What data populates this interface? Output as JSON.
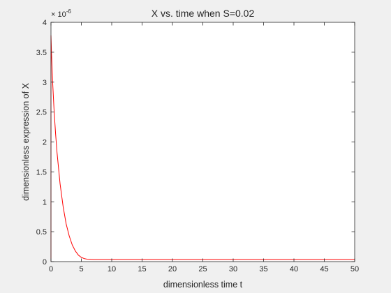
{
  "chart_data": {
    "type": "line",
    "title": "X vs. time when S=0.02",
    "xlabel": "dimensionless time t",
    "ylabel": "dimensionless expression of X",
    "xlim": [
      0,
      50
    ],
    "ylim": [
      0,
      4
    ],
    "y_exponent_base": "× 10",
    "y_exponent_power": "-6",
    "x_ticks": [
      "0",
      "5",
      "10",
      "15",
      "20",
      "25",
      "30",
      "35",
      "40",
      "45",
      "50"
    ],
    "y_ticks": [
      "0",
      "0.5",
      "1",
      "1.5",
      "2",
      "2.5",
      "3",
      "3.5",
      "4"
    ],
    "grid": false,
    "legend": "none",
    "series": [
      {
        "color": "#ff0000",
        "x": [
          0,
          0,
          0.1,
          0.25,
          0.5,
          0.75,
          1.0,
          1.5,
          2.0,
          2.5,
          3.0,
          3.5,
          4.0,
          4.5,
          5.0,
          5.5,
          6.0,
          7.0,
          8.0,
          10.0,
          15.0,
          20.0,
          25.0,
          30.0,
          35.0,
          40.0,
          45.0,
          50.0
        ],
        "y": [
          0,
          3.78,
          3.45,
          3.05,
          2.55,
          2.15,
          1.82,
          1.3,
          0.92,
          0.63,
          0.43,
          0.28,
          0.18,
          0.11,
          0.07,
          0.05,
          0.04,
          0.035,
          0.035,
          0.035,
          0.035,
          0.035,
          0.035,
          0.035,
          0.035,
          0.035,
          0.035,
          0.035
        ]
      }
    ]
  }
}
